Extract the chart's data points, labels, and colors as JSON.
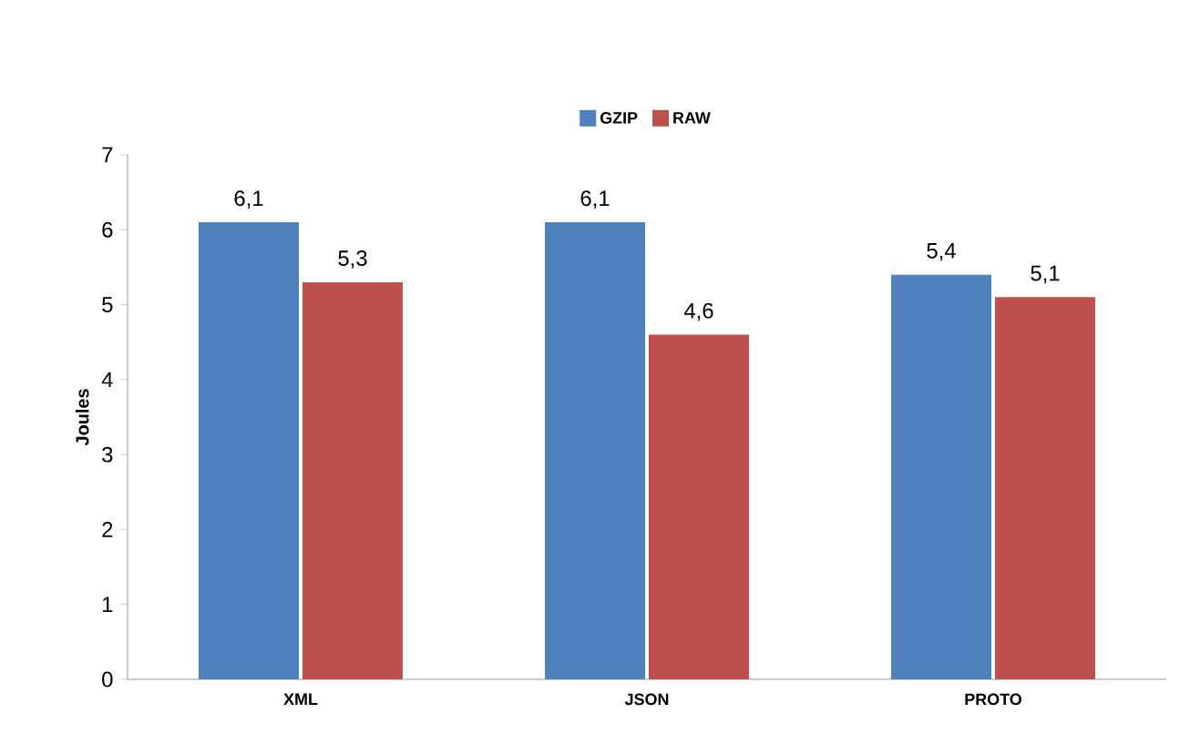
{
  "chart_data": {
    "type": "bar",
    "ylabel": "Joules",
    "categories": [
      "XML",
      "JSON",
      "PROTO"
    ],
    "series": [
      {
        "name": "GZIP",
        "color": "#4f81bd",
        "values": [
          6.1,
          6.1,
          5.4
        ],
        "value_labels": [
          "6,1",
          "6,1",
          "5,4"
        ]
      },
      {
        "name": "RAW",
        "color": "#c0504d",
        "values": [
          5.3,
          4.6,
          5.1
        ],
        "value_labels": [
          "5,3",
          "4,6",
          "5,1"
        ]
      }
    ],
    "ylim": [
      0,
      7
    ],
    "yticks": [
      0,
      1,
      2,
      3,
      4,
      5,
      6,
      7
    ],
    "legend": "top"
  }
}
